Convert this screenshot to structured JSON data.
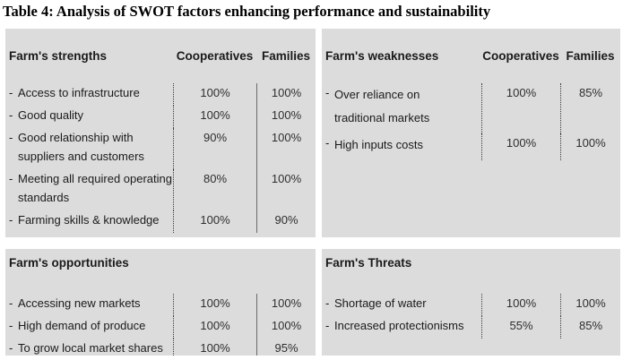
{
  "title": "Table 4: Analysis of SWOT factors enhancing performance and sustainability",
  "dash": "-",
  "columns": {
    "cooperatives": "Cooperatives",
    "families": "Families"
  },
  "colors": {
    "panel_bg": "#dcdcdc",
    "text": "#1a1a1a",
    "value_text": "#2e2e2e",
    "divider_dotted": "#3a3a3a",
    "divider_solid": "#6b6b6b"
  },
  "panels": {
    "strengths": {
      "title": "Farm's strengths",
      "rows": [
        {
          "label": "Access to infrastructure",
          "cooperatives": "100%",
          "families": "100%"
        },
        {
          "label": "Good quality",
          "cooperatives": "100%",
          "families": "100%"
        },
        {
          "label": "Good relationship with\nsuppliers and customers",
          "cooperatives": "90%",
          "families": "100%"
        },
        {
          "label": "Meeting all required operating\nstandards",
          "cooperatives": "80%",
          "families": "100%"
        },
        {
          "label": "Farming skills & knowledge",
          "cooperatives": "100%",
          "families": "90%"
        }
      ]
    },
    "weaknesses": {
      "title": "Farm's weaknesses",
      "rows": [
        {
          "label": "Over reliance on\ntraditional markets",
          "cooperatives": "100%",
          "families": "85%"
        },
        {
          "label": "High inputs costs",
          "cooperatives": "100%",
          "families": "100%"
        }
      ]
    },
    "opportunities": {
      "title": "Farm's opportunities",
      "rows": [
        {
          "label": "Accessing new markets",
          "cooperatives": "100%",
          "families": "100%"
        },
        {
          "label": "High demand of produce",
          "cooperatives": "100%",
          "families": "100%"
        },
        {
          "label": "To grow local market shares",
          "cooperatives": "100%",
          "families": "95%"
        }
      ]
    },
    "threats": {
      "title": "Farm's Threats",
      "rows": [
        {
          "label": "Shortage of water",
          "cooperatives": "100%",
          "families": "100%"
        },
        {
          "label": "Increased protectionisms",
          "cooperatives": "55%",
          "families": "85%"
        }
      ]
    }
  }
}
